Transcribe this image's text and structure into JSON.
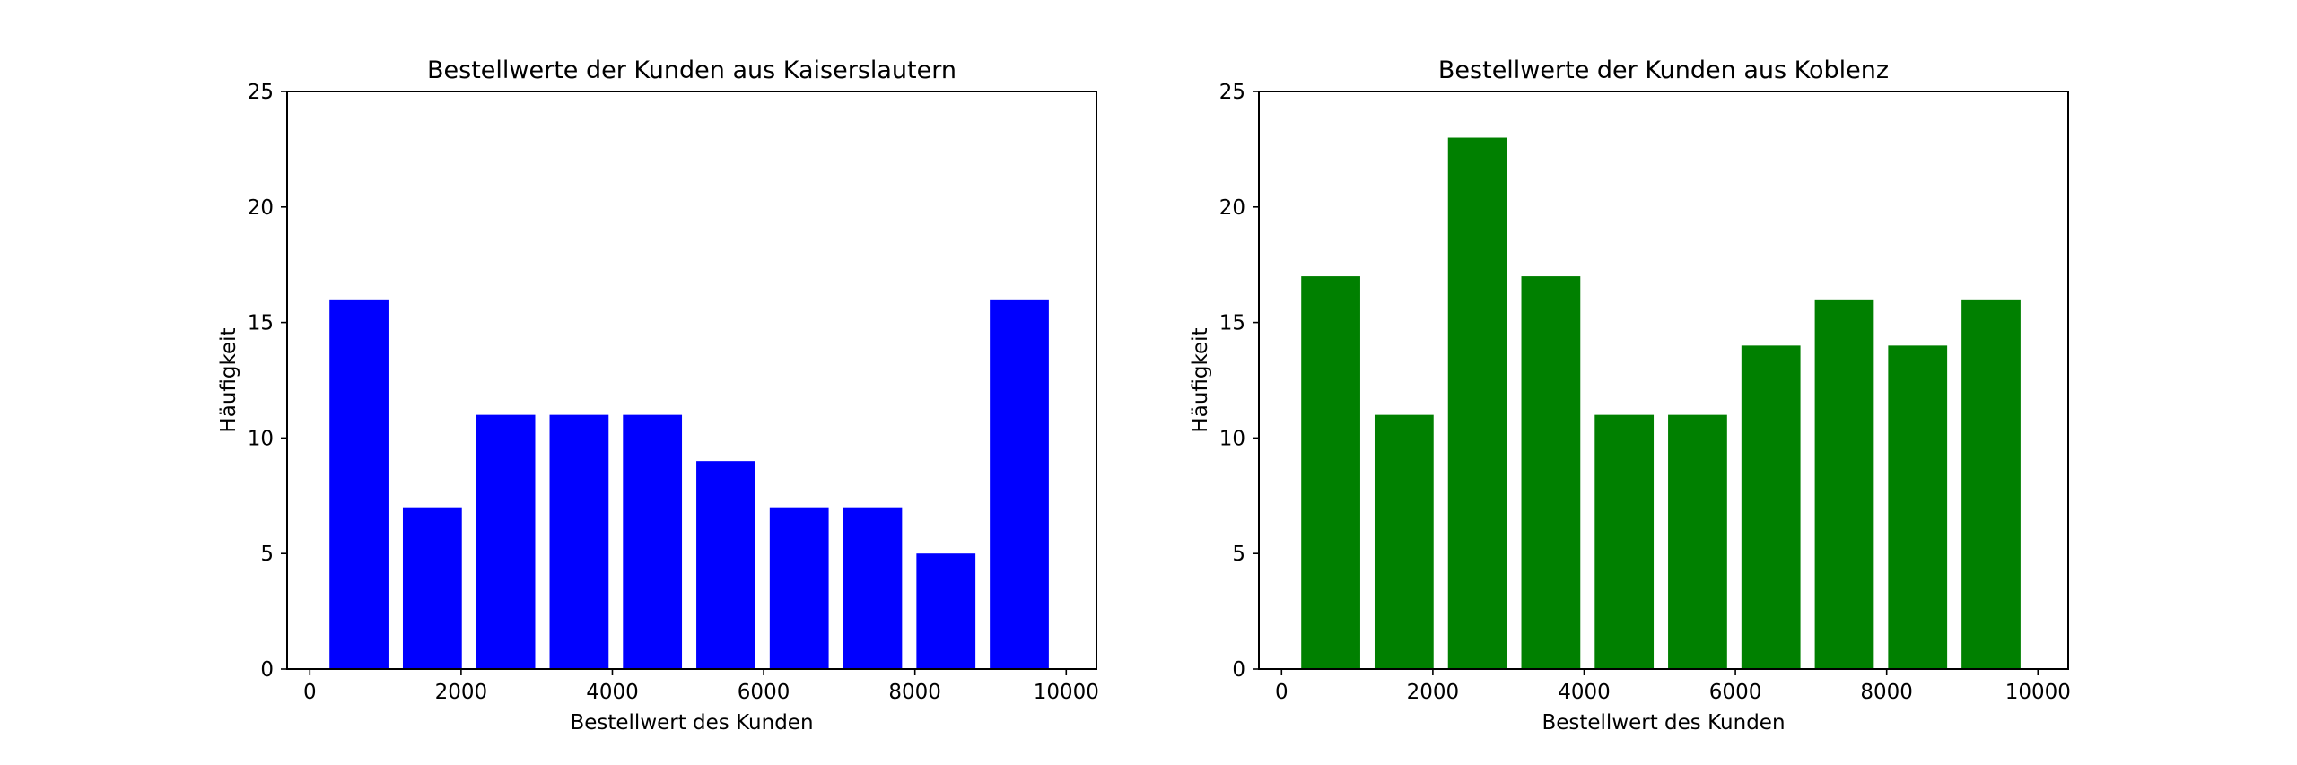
{
  "chart_data": [
    {
      "type": "bar",
      "title": "Bestellwerte der Kunden aus Kaiserslautern",
      "xlabel": "Bestellwert des Kunden",
      "ylabel": "Häufigkeit",
      "bin_centers": [
        650,
        1620,
        2590,
        3560,
        4530,
        5500,
        6470,
        7440,
        8410,
        9380
      ],
      "bar_width": 780,
      "values": [
        16,
        7,
        11,
        11,
        11,
        9,
        7,
        7,
        5,
        16
      ],
      "color": "#0000ff",
      "xlim": [
        -300,
        10400
      ],
      "ylim": [
        0,
        25
      ],
      "xticks": [
        0,
        2000,
        4000,
        6000,
        8000,
        10000
      ],
      "yticks": [
        0,
        5,
        10,
        15,
        20,
        25
      ],
      "grid": false
    },
    {
      "type": "bar",
      "title": "Bestellwerte der Kunden aus Koblenz",
      "xlabel": "Bestellwert des Kunden",
      "ylabel": "Häufigkeit",
      "bin_centers": [
        650,
        1620,
        2590,
        3560,
        4530,
        5500,
        6470,
        7440,
        8410,
        9380
      ],
      "bar_width": 780,
      "values": [
        17,
        11,
        23,
        17,
        11,
        11,
        14,
        16,
        14,
        16
      ],
      "color": "#008000",
      "xlim": [
        -300,
        10400
      ],
      "ylim": [
        0,
        25
      ],
      "xticks": [
        0,
        2000,
        4000,
        6000,
        8000,
        10000
      ],
      "yticks": [
        0,
        5,
        10,
        15,
        20,
        25
      ],
      "grid": false
    }
  ]
}
